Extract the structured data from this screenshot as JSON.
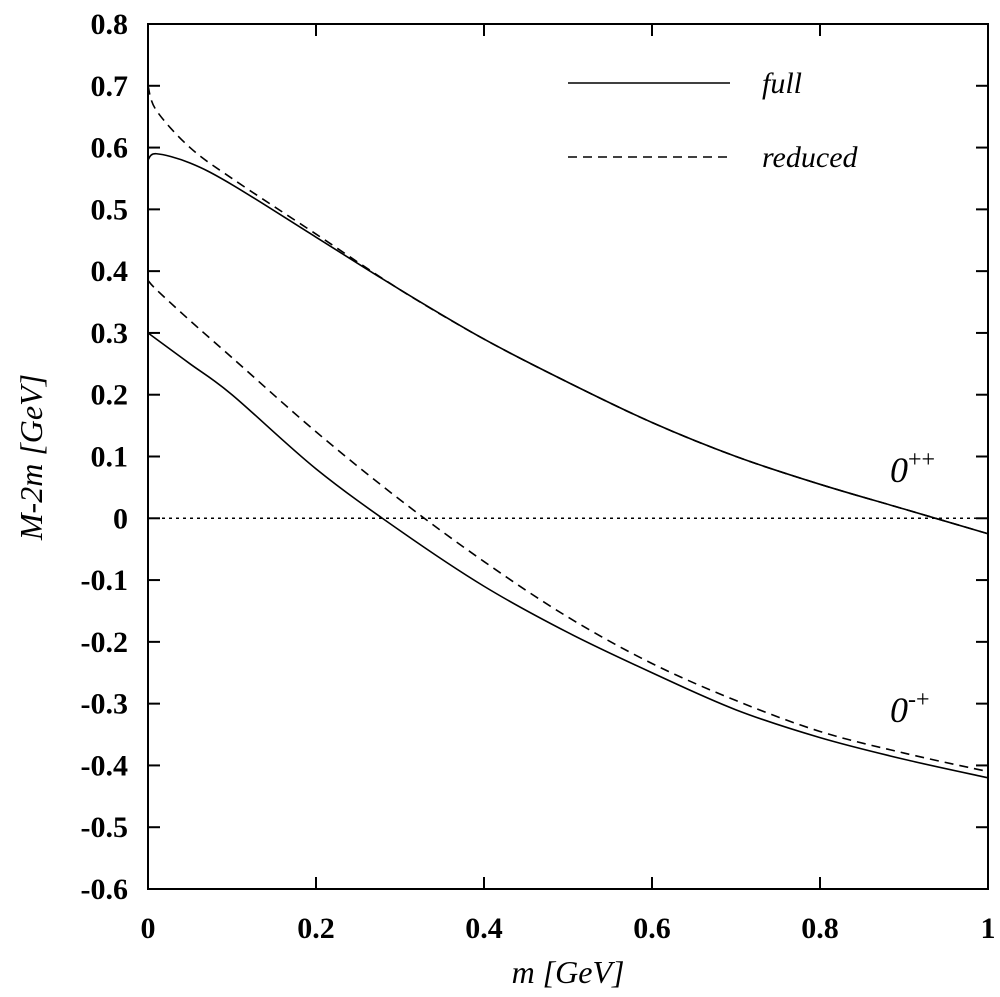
{
  "chart_data": {
    "type": "line",
    "xlabel": "m [GeV]",
    "ylabel": "M-2m [GeV]",
    "xlim": [
      0,
      1
    ],
    "ylim": [
      -0.6,
      0.8
    ],
    "x_ticks": [
      "0",
      "0.2",
      "0.4",
      "0.6",
      "0.8",
      "1"
    ],
    "y_ticks": [
      "-0.6",
      "-0.5",
      "-0.4",
      "-0.3",
      "-0.2",
      "-0.1",
      "0",
      "0.1",
      "0.2",
      "0.3",
      "0.4",
      "0.5",
      "0.6",
      "0.7",
      "0.8"
    ],
    "grid": false,
    "legend": {
      "position": "top-right",
      "entries": [
        {
          "label": "full",
          "style": "solid"
        },
        {
          "label": "reduced",
          "style": "dashed"
        }
      ]
    },
    "annotations": [
      {
        "base": "0",
        "sup": "++",
        "x": 0.93,
        "y": 0.07
      },
      {
        "base": "0",
        "sup": "-+",
        "x": 0.93,
        "y": -0.31
      }
    ],
    "reference_line": {
      "y": 0,
      "style": "dotted"
    },
    "x": [
      0,
      0.01,
      0.05,
      0.1,
      0.2,
      0.3,
      0.4,
      0.5,
      0.6,
      0.7,
      0.8,
      0.9,
      1.0
    ],
    "series": [
      {
        "group": "0++",
        "legend": "full",
        "style": "solid",
        "values": [
          0.58,
          0.59,
          0.575,
          0.54,
          0.455,
          0.37,
          0.29,
          0.22,
          0.155,
          0.1,
          0.055,
          0.015,
          -0.025
        ]
      },
      {
        "group": "0++",
        "legend": "reduced",
        "style": "dashed",
        "values": [
          0.7,
          0.66,
          0.6,
          0.55,
          0.46,
          0.37,
          0.29,
          0.22,
          0.155,
          0.1,
          0.055,
          0.015,
          -0.025
        ]
      },
      {
        "group": "0-+",
        "legend": "full",
        "style": "solid",
        "values": [
          0.3,
          0.29,
          0.25,
          0.2,
          0.08,
          -0.02,
          -0.11,
          -0.185,
          -0.25,
          -0.31,
          -0.355,
          -0.39,
          -0.42
        ]
      },
      {
        "group": "0-+",
        "legend": "reduced",
        "style": "dashed",
        "values": [
          0.385,
          0.37,
          0.32,
          0.26,
          0.14,
          0.03,
          -0.07,
          -0.16,
          -0.235,
          -0.295,
          -0.345,
          -0.38,
          -0.41
        ]
      }
    ]
  }
}
